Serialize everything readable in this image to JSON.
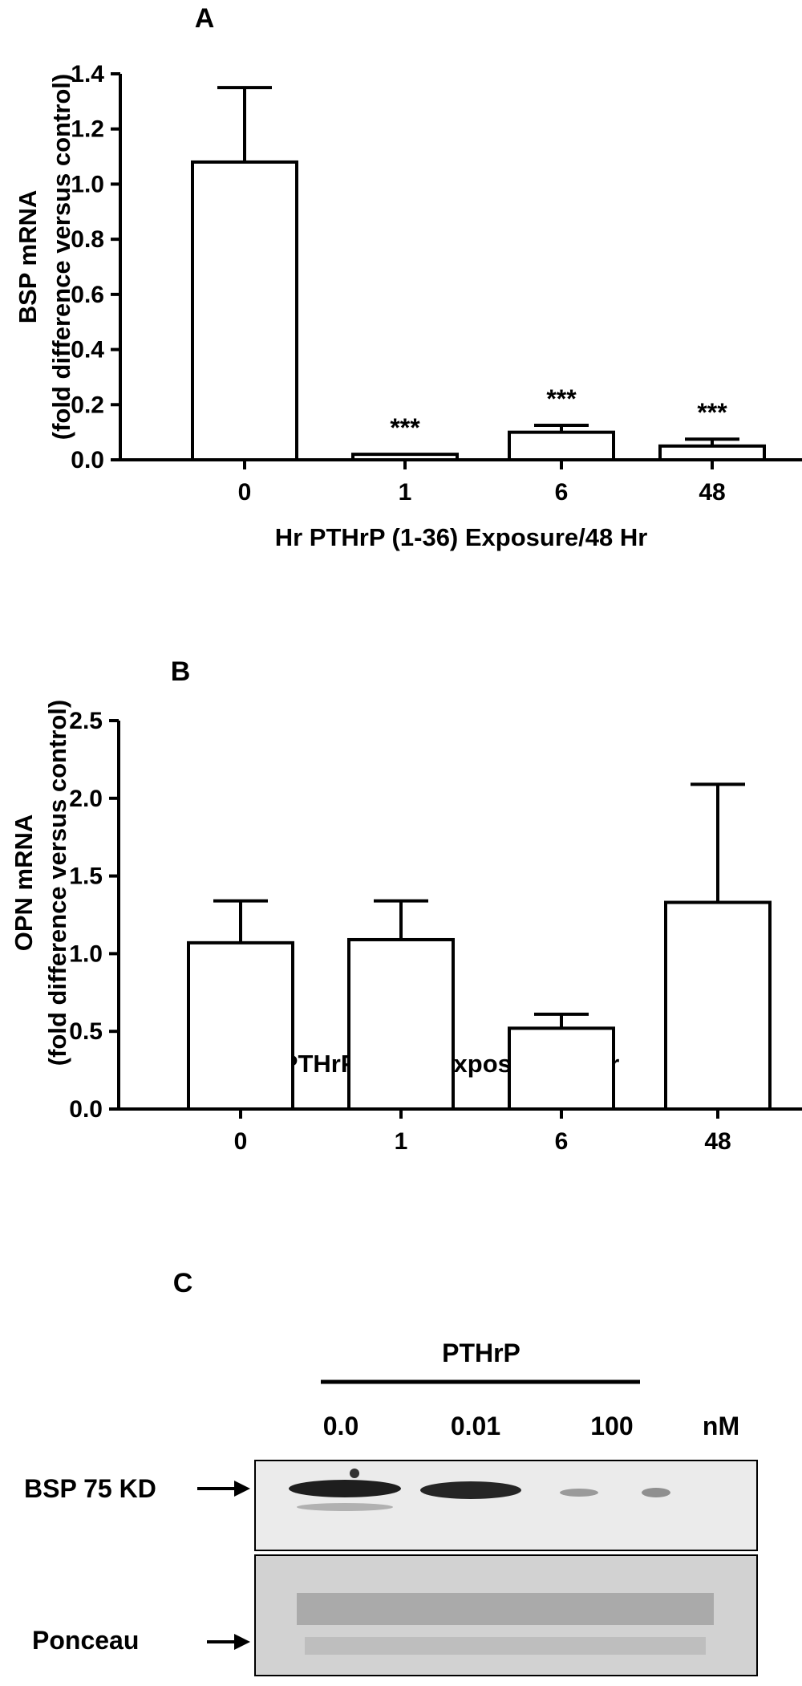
{
  "chart_data": [
    {
      "type": "bar",
      "panel": "A",
      "categories": [
        "0",
        "1",
        "6",
        "48"
      ],
      "values": [
        1.08,
        0.02,
        0.1,
        0.05
      ],
      "errors": [
        0.27,
        0.0,
        0.025,
        0.025
      ],
      "annotations": [
        "",
        "***",
        "***",
        "***"
      ],
      "ylabel": "BSP mRNA",
      "ylabel2": "(fold difference versus control)",
      "xlabel": "Hr PTHrP (1-36) Exposure/48 Hr",
      "ylim": [
        0,
        1.4
      ],
      "yticks": [
        "0.0",
        "0.2",
        "0.4",
        "0.6",
        "0.8",
        "1.0",
        "1.2",
        "1.4"
      ]
    },
    {
      "type": "bar",
      "panel": "B",
      "categories": [
        "0",
        "1",
        "6",
        "48"
      ],
      "values": [
        1.07,
        1.09,
        0.52,
        1.33
      ],
      "errors": [
        0.27,
        0.25,
        0.09,
        0.76
      ],
      "ylabel": "OPN mRNA",
      "ylabel2": "(fold difference versus control)",
      "xlabel": "Hr PTHrP (1-36) Exposure/48 Hr",
      "ylim": [
        0,
        2.5
      ],
      "yticks": [
        "0.0",
        "0.5",
        "1.0",
        "1.5",
        "2.0",
        "2.5"
      ]
    }
  ],
  "blot": {
    "panel": "C",
    "treatment": "PTHrP",
    "doses": [
      "0.0",
      "0.01",
      "100"
    ],
    "unit": "nM",
    "rows": [
      "BSP 75 KD",
      "Ponceau"
    ]
  },
  "colors": {
    "bar_fill": "#ffffff",
    "stroke": "#000000",
    "blot_bg": "#e9e9e9",
    "ponceau_bg": "#d4d4d4"
  }
}
